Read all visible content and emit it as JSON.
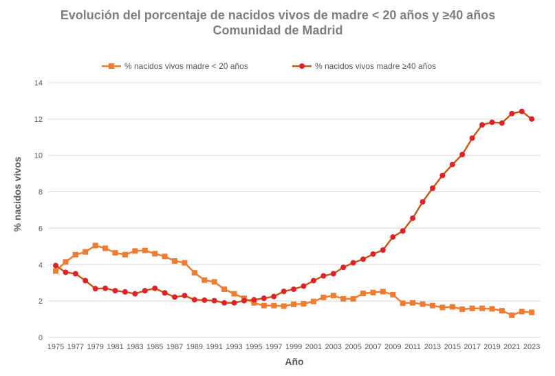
{
  "chart_data": {
    "type": "line",
    "title": "Evolución del porcentaje de nacidos vivos de madre < 20 años y ≥40 años",
    "subtitle": "Comunidad de Madrid",
    "xlabel": "Año",
    "ylabel": "% nacidos vivos",
    "ylim": [
      0,
      14
    ],
    "yticks": [
      0,
      2,
      4,
      6,
      8,
      10,
      12,
      14
    ],
    "grid": true,
    "legend": "top",
    "x": [
      1975,
      1976,
      1977,
      1978,
      1979,
      1980,
      1981,
      1982,
      1983,
      1984,
      1985,
      1986,
      1987,
      1988,
      1989,
      1990,
      1991,
      1992,
      1993,
      1994,
      1995,
      1996,
      1997,
      1998,
      1999,
      2000,
      2001,
      2002,
      2003,
      2004,
      2005,
      2006,
      2007,
      2008,
      2009,
      2010,
      2011,
      2012,
      2013,
      2014,
      2015,
      2016,
      2017,
      2018,
      2019,
      2020,
      2021,
      2022,
      2023
    ],
    "xticks": [
      "1975",
      "1977",
      "1979",
      "1981",
      "1983",
      "1985",
      "1987",
      "1989",
      "1991",
      "1993",
      "1995",
      "1997",
      "1999",
      "2001",
      "2003",
      "2005",
      "2007",
      "2009",
      "2011",
      "2013",
      "2015",
      "2017",
      "2019",
      "2021",
      "2023"
    ],
    "series": [
      {
        "name": "% nacidos vivos madre < 20 años",
        "color": "#ED7D31",
        "marker": "square",
        "marker_color": "#ED7D31",
        "values": [
          3.65,
          4.15,
          4.55,
          4.7,
          5.05,
          4.9,
          4.65,
          4.55,
          4.75,
          4.78,
          4.6,
          4.45,
          4.2,
          4.1,
          3.55,
          3.15,
          3.05,
          2.65,
          2.4,
          2.15,
          1.9,
          1.75,
          1.75,
          1.72,
          1.82,
          1.85,
          1.98,
          2.2,
          2.3,
          2.12,
          2.12,
          2.42,
          2.47,
          2.52,
          2.35,
          1.88,
          1.9,
          1.83,
          1.75,
          1.65,
          1.68,
          1.55,
          1.6,
          1.6,
          1.57,
          1.47,
          1.22,
          1.42,
          1.38
        ]
      },
      {
        "name": "% nacidos vivos  madre ≥40 años",
        "color": "#C55A11",
        "marker": "circle",
        "marker_color": "#E0202A",
        "values": [
          3.95,
          3.58,
          3.5,
          3.12,
          2.68,
          2.7,
          2.57,
          2.5,
          2.4,
          2.57,
          2.7,
          2.45,
          2.22,
          2.3,
          2.07,
          2.05,
          2.02,
          1.9,
          1.9,
          2.02,
          2.07,
          2.15,
          2.25,
          2.53,
          2.65,
          2.82,
          3.12,
          3.38,
          3.5,
          3.85,
          4.1,
          4.3,
          4.58,
          4.8,
          5.52,
          5.85,
          6.55,
          7.45,
          8.2,
          8.9,
          9.5,
          10.05,
          10.95,
          11.68,
          11.82,
          11.78,
          12.3,
          12.42,
          12.0
        ]
      }
    ]
  }
}
